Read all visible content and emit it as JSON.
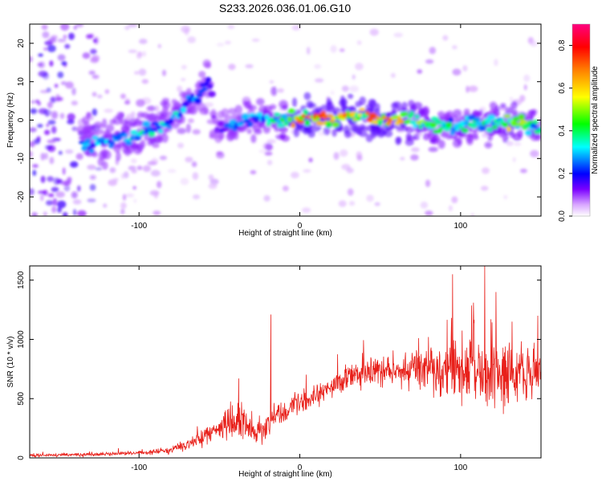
{
  "title": "S233.2026.036.01.06.G10",
  "chart_data": [
    {
      "type": "heatmap",
      "xlabel": "Height of straight line (km)",
      "ylabel": "Frequency (Hz)",
      "xlim": [
        -168,
        150
      ],
      "ylim": [
        -25,
        25
      ],
      "xticks": [
        -100,
        0,
        100
      ],
      "yticks": [
        -20,
        -10,
        0,
        10,
        20
      ],
      "colorbar": {
        "label": "Normalized spectral amplitude",
        "range": [
          0,
          0.9
        ],
        "ticks": [
          0.0,
          0.2,
          0.4,
          0.6,
          0.8
        ],
        "tick_labels": [
          "0.0",
          "0.2",
          "0.4",
          "0.6",
          "0.8"
        ],
        "colors": [
          "#ffffff",
          "#d9a6ff",
          "#7a00ff",
          "#0000ff",
          "#00ffff",
          "#00ff00",
          "#ffff00",
          "#ff8000",
          "#ff0000",
          "#ff0080"
        ]
      },
      "ridge": [
        {
          "x": -130,
          "f": -6,
          "a": 0.3
        },
        {
          "x": -115,
          "f": -5,
          "a": 0.35
        },
        {
          "x": -100,
          "f": -3.5,
          "a": 0.4
        },
        {
          "x": -90,
          "f": -2,
          "a": 0.4
        },
        {
          "x": -82,
          "f": 0,
          "a": 0.35
        },
        {
          "x": -76,
          "f": 2,
          "a": 0.35
        },
        {
          "x": -70,
          "f": 4,
          "a": 0.3
        },
        {
          "x": -64,
          "f": 6,
          "a": 0.3
        },
        {
          "x": -60,
          "f": 8,
          "a": 0.25
        },
        {
          "x": -55,
          "f": 10,
          "a": 0.15
        },
        {
          "x": -53,
          "f": -4,
          "a": 0.15
        },
        {
          "x": -48,
          "f": -2,
          "a": 0.2
        },
        {
          "x": -40,
          "f": -1,
          "a": 0.3
        },
        {
          "x": -30,
          "f": 1,
          "a": 0.35
        },
        {
          "x": -20,
          "f": 0,
          "a": 0.4
        },
        {
          "x": -10,
          "f": 0,
          "a": 0.45
        },
        {
          "x": 0,
          "f": 0.5,
          "a": 0.8
        },
        {
          "x": 10,
          "f": 0.5,
          "a": 0.75
        },
        {
          "x": 20,
          "f": 0.5,
          "a": 0.7
        },
        {
          "x": 30,
          "f": 1,
          "a": 0.75
        },
        {
          "x": 40,
          "f": 1,
          "a": 0.7
        },
        {
          "x": 50,
          "f": 0.5,
          "a": 0.75
        },
        {
          "x": 60,
          "f": 0.5,
          "a": 0.7
        },
        {
          "x": 70,
          "f": 0,
          "a": 0.6
        },
        {
          "x": 80,
          "f": -1,
          "a": 0.5
        },
        {
          "x": 90,
          "f": -2,
          "a": 0.4
        },
        {
          "x": 100,
          "f": -1.5,
          "a": 0.45
        },
        {
          "x": 110,
          "f": -1,
          "a": 0.4
        },
        {
          "x": 120,
          "f": -1,
          "a": 0.45
        },
        {
          "x": 130,
          "f": -0.5,
          "a": 0.6
        },
        {
          "x": 140,
          "f": -1,
          "a": 0.5
        },
        {
          "x": 148,
          "f": -2,
          "a": 0.4
        }
      ]
    },
    {
      "type": "line",
      "xlabel": "Height of straight line (km)",
      "ylabel": "SNR (10 * v/v)",
      "xlim": [
        -168,
        150
      ],
      "ylim": [
        0,
        1620
      ],
      "xticks": [
        -100,
        0,
        100
      ],
      "yticks": [
        0,
        500,
        1000,
        1500
      ],
      "color": "#e8201a",
      "envelope": {
        "x": [
          -168,
          -150,
          -130,
          -110,
          -90,
          -80,
          -70,
          -62,
          -55,
          -45,
          -38,
          -30,
          -22,
          -15,
          -5,
          5,
          15,
          25,
          35,
          45,
          55,
          70,
          85,
          100,
          115,
          130,
          150
        ],
        "mean": [
          20,
          25,
          30,
          35,
          50,
          70,
          110,
          160,
          220,
          270,
          300,
          200,
          250,
          350,
          430,
          500,
          570,
          640,
          700,
          720,
          730,
          740,
          750,
          740,
          760,
          730,
          720
        ],
        "spread": [
          15,
          15,
          20,
          20,
          25,
          30,
          50,
          80,
          100,
          150,
          200,
          120,
          120,
          100,
          110,
          110,
          110,
          120,
          130,
          140,
          150,
          170,
          230,
          300,
          330,
          280,
          250
        ]
      },
      "spikes": [
        {
          "x": -38,
          "y": 670
        },
        {
          "x": -18,
          "y": 1210
        },
        {
          "x": 80,
          "y": 1020
        },
        {
          "x": 95,
          "y": 1550
        },
        {
          "x": 108,
          "y": 1310
        },
        {
          "x": 115,
          "y": 1620
        },
        {
          "x": 122,
          "y": 1400
        },
        {
          "x": 132,
          "y": 1150
        },
        {
          "x": 148,
          "y": 1200
        }
      ]
    }
  ]
}
